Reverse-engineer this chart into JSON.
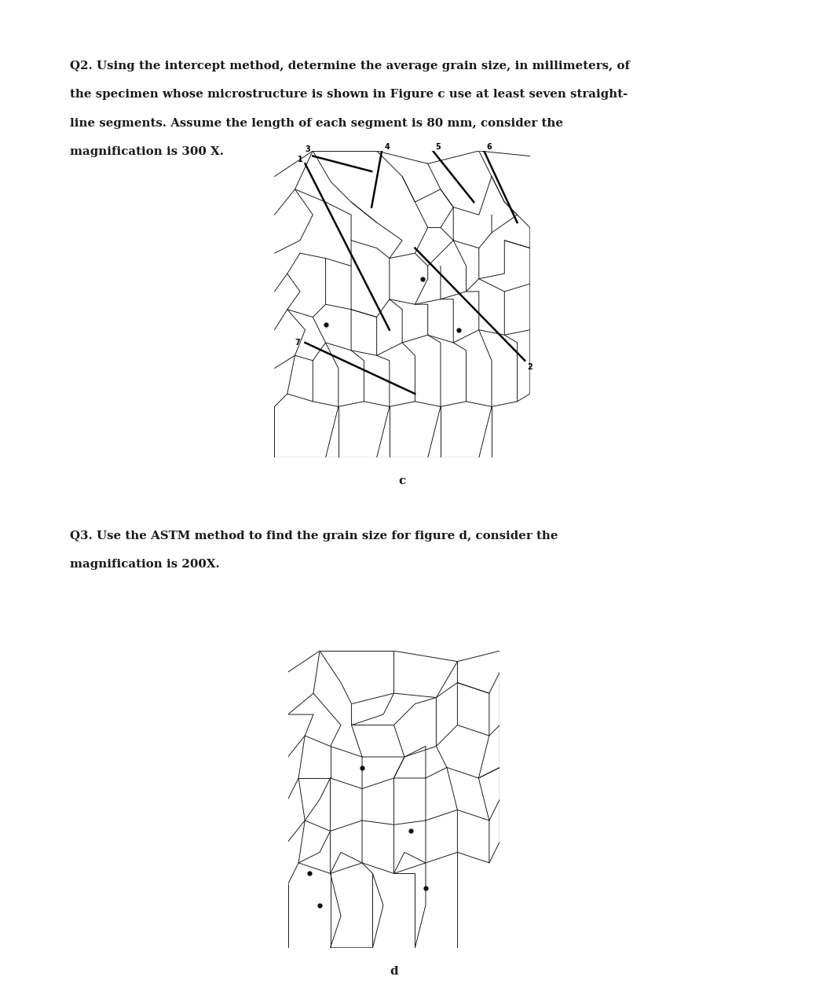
{
  "page_bg": "#ffffff",
  "text_color": "#1a1a1a",
  "q2_lines": [
    "Q2. Using the intercept method, determine the average grain size, in millimeters, of",
    "the specimen whose microstructure is shown in Figure c use at least seven straight-",
    "line segments. Assume the length of each segment is 80 mm, consider the",
    "magnification is 300 X."
  ],
  "q3_lines": [
    "Q3. Use the ASTM method to find the grain size for figure d, consider the",
    "magnification is 200X."
  ],
  "label_c": "c",
  "label_d": "d",
  "fig_width": 10.67,
  "fig_height": 12.8,
  "grain_bg_c": "#c8c4bc",
  "grain_bg_d": "#d0ccC4",
  "grain_line_color": "#1a1a1a",
  "seg_color": "#050505",
  "dot_color": "#111111"
}
